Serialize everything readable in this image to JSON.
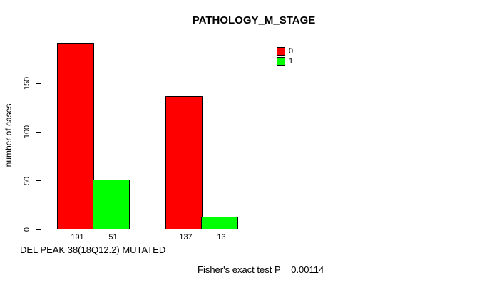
{
  "title": "PATHOLOGY_M_STAGE",
  "chart_data": {
    "type": "bar",
    "title": "PATHOLOGY_M_STAGE",
    "xlabel": "DEL PEAK 38(18Q12.2) MUTATED",
    "ylabel": "number of cases",
    "yticks": [
      0,
      50,
      100,
      150
    ],
    "ylim": [
      0,
      195
    ],
    "grid": false,
    "legend_position": "inside-top-right",
    "categories": [
      "group-1",
      "group-2"
    ],
    "series": [
      {
        "name": "0",
        "color": "#ff0000",
        "values": [
          191,
          137
        ]
      },
      {
        "name": "1",
        "color": "#00ff00",
        "values": [
          51,
          13
        ]
      }
    ],
    "bar_value_labels": [
      [
        191,
        51
      ],
      [
        137,
        13
      ]
    ],
    "annotation": "Fisher's exact test P = 0.00114"
  },
  "colors": {
    "background": "#ffffff",
    "axis": "#000000",
    "text": "#000000",
    "bar_border": "#000000",
    "series_0": "#ff0000",
    "series_1": "#00ff00"
  }
}
